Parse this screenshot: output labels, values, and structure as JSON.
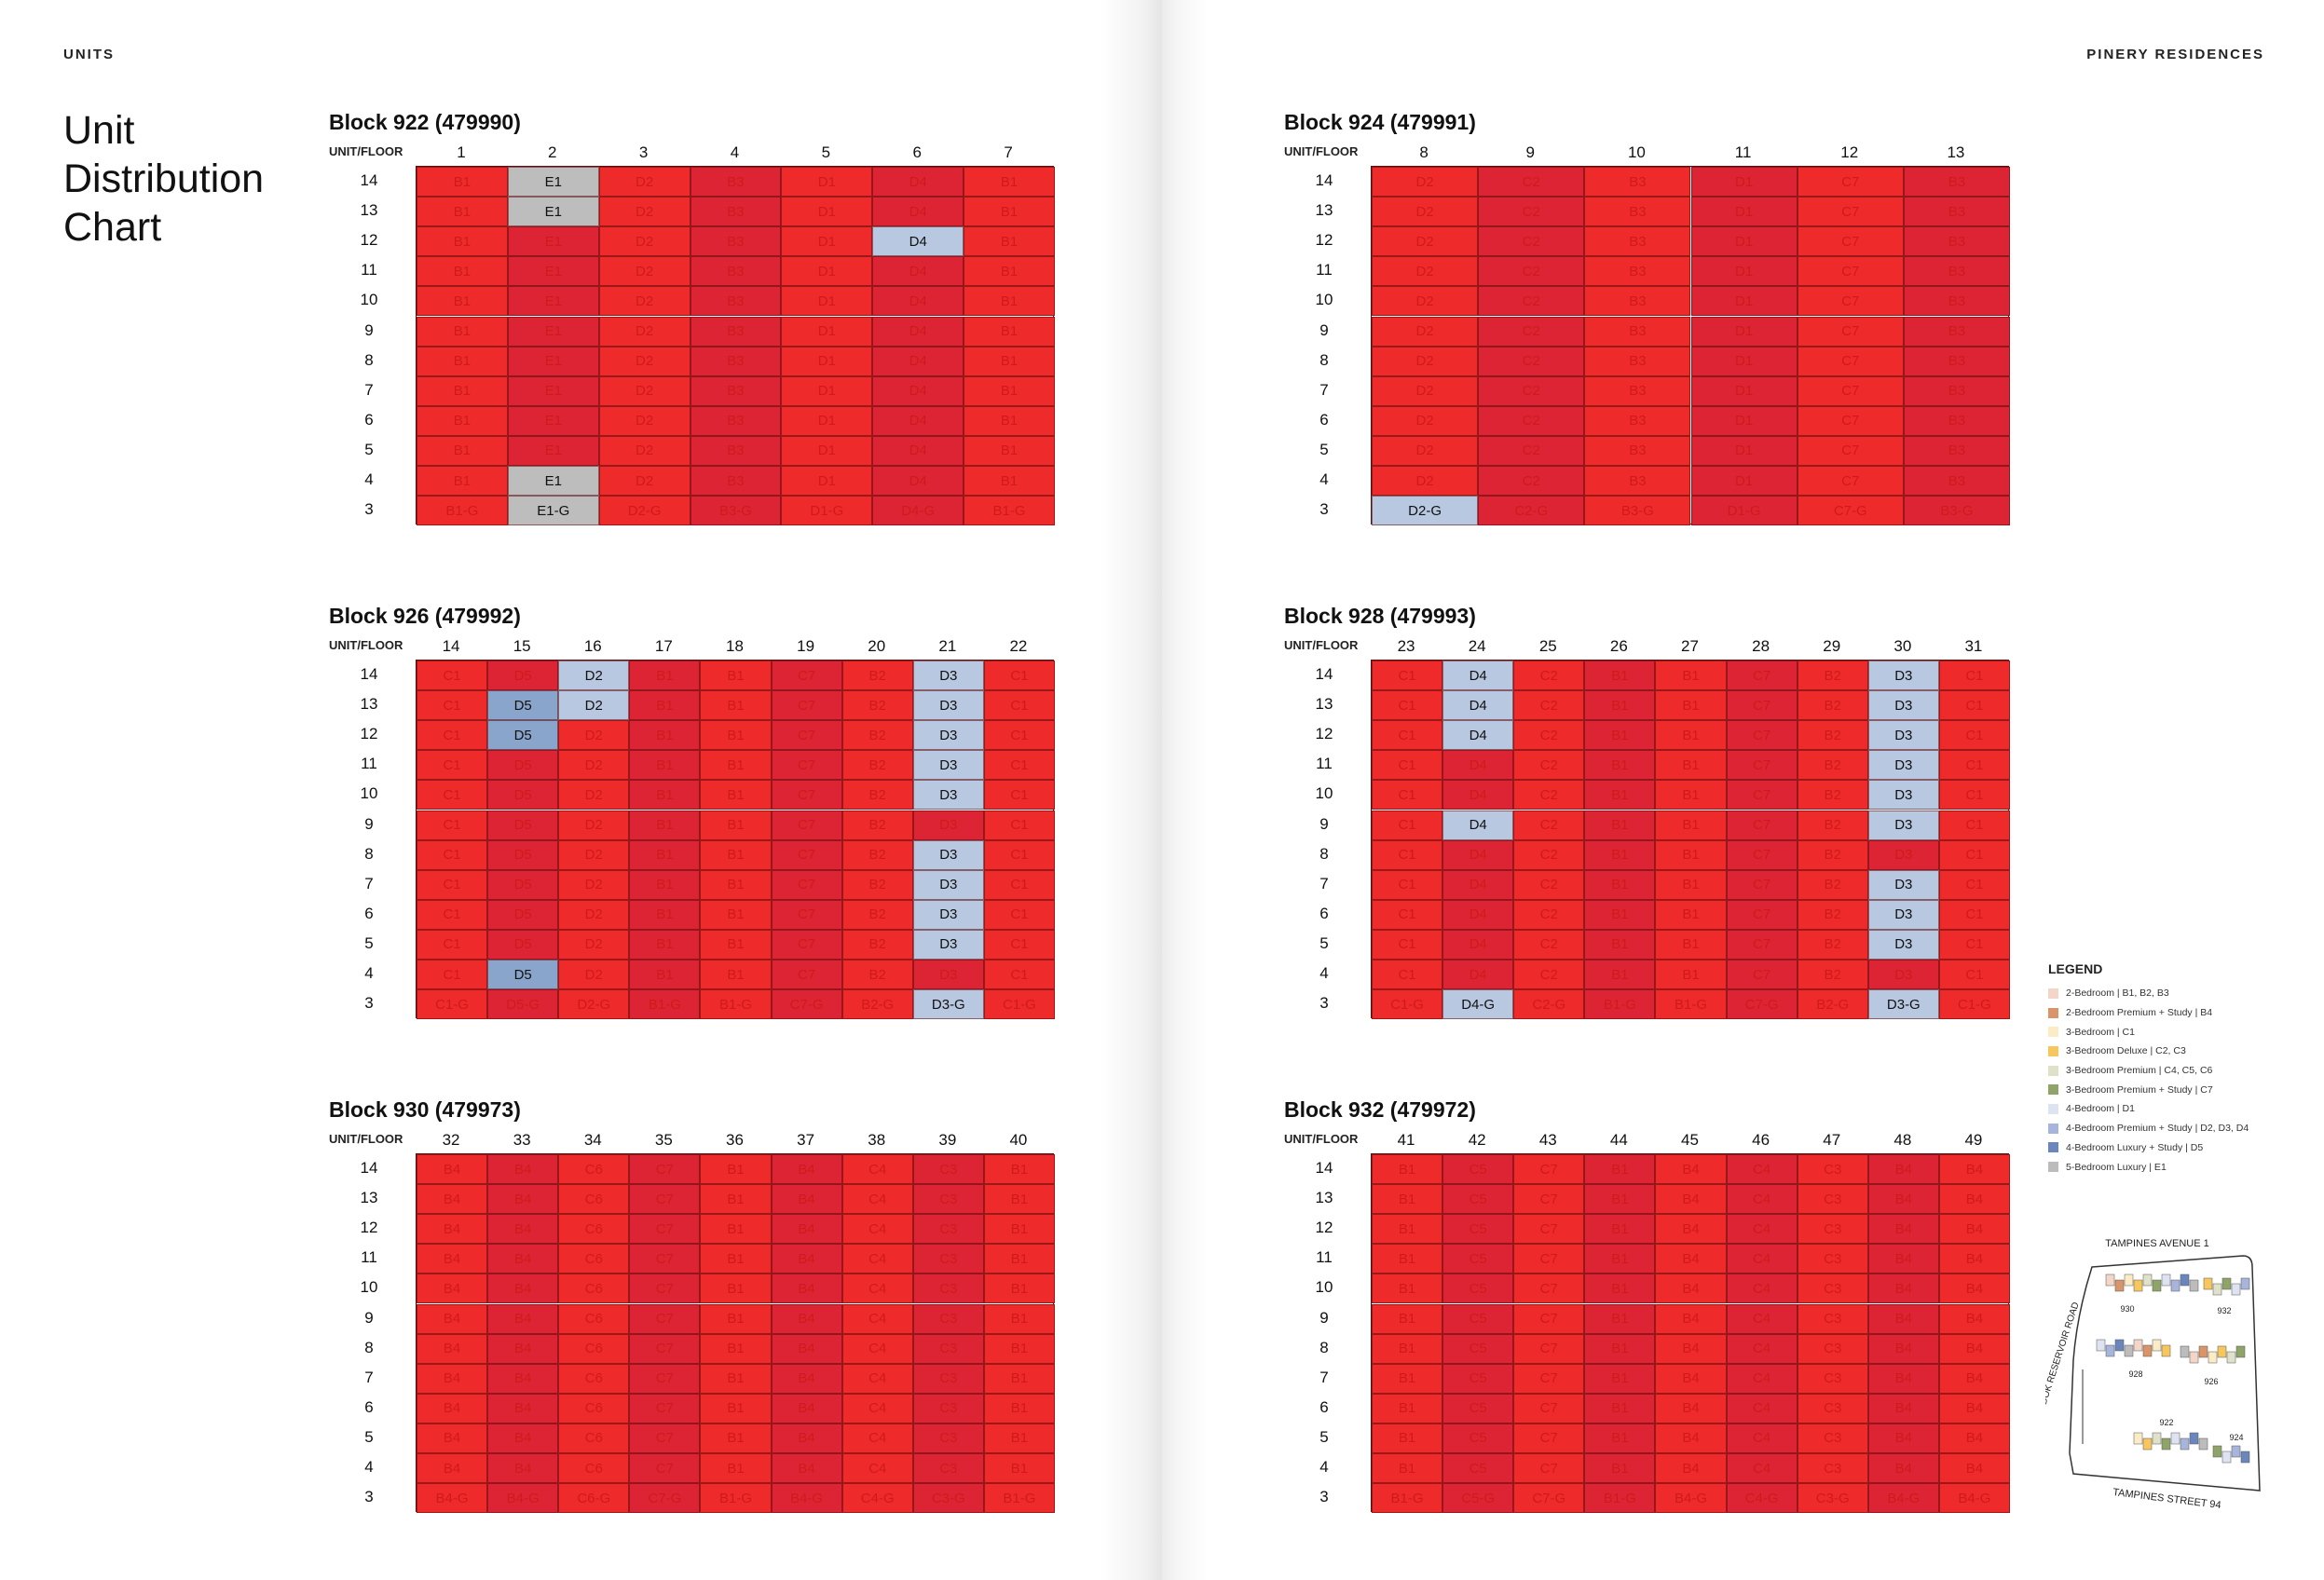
{
  "header": {
    "left": "UNITS",
    "right": "PINERY RESIDENCES"
  },
  "title_lines": [
    "Unit",
    "Distribution",
    "Chart"
  ],
  "unit_floor_label": "UNIT/FLOOR",
  "colors": {
    "default_cell": "#ee2a2a",
    "alt_cell": "#dc2434",
    "highlight_light": "#b8c8e0",
    "highlight_mid": "#8aa5cc",
    "highlight_grey": "#bdbdbd",
    "text_on_red": "#d01a1a",
    "text_on_highlight": "#111111"
  },
  "floors": [
    14,
    13,
    12,
    11,
    10,
    9,
    8,
    7,
    6,
    5,
    4,
    3
  ],
  "blocks": [
    {
      "title": "Block 922 (479990)",
      "units": [
        1,
        2,
        3,
        4,
        5,
        6,
        7
      ],
      "rows": [
        [
          "B1",
          "E1",
          "D2",
          "B3",
          "D1",
          "D4",
          "B1"
        ],
        [
          "B1",
          "E1",
          "D2",
          "B3",
          "D1",
          "D4",
          "B1"
        ],
        [
          "B1",
          "E1",
          "D2",
          "B3",
          "D1",
          "D4",
          "B1"
        ],
        [
          "B1",
          "E1",
          "D2",
          "B3",
          "D1",
          "D4",
          "B1"
        ],
        [
          "B1",
          "E1",
          "D2",
          "B3",
          "D1",
          "D4",
          "B1"
        ],
        [
          "B1",
          "E1",
          "D2",
          "B3",
          "D1",
          "D4",
          "B1"
        ],
        [
          "B1",
          "E1",
          "D2",
          "B3",
          "D1",
          "D4",
          "B1"
        ],
        [
          "B1",
          "E1",
          "D2",
          "B3",
          "D1",
          "D4",
          "B1"
        ],
        [
          "B1",
          "E1",
          "D2",
          "B3",
          "D1",
          "D4",
          "B1"
        ],
        [
          "B1",
          "E1",
          "D2",
          "B3",
          "D1",
          "D4",
          "B1"
        ],
        [
          "B1",
          "E1",
          "D2",
          "B3",
          "D1",
          "D4",
          "B1"
        ],
        [
          "B1-G",
          "E1-G",
          "D2-G",
          "B3-G",
          "D1-G",
          "D4-G",
          "B1-G"
        ]
      ],
      "highlights": [
        [
          0,
          1,
          "grey"
        ],
        [
          1,
          1,
          "grey"
        ],
        [
          2,
          5,
          "light"
        ],
        [
          10,
          1,
          "grey"
        ],
        [
          11,
          1,
          "grey"
        ]
      ]
    },
    {
      "title": "Block 924 (479991)",
      "units": [
        8,
        9,
        10,
        11,
        12,
        13
      ],
      "rows": [
        [
          "D2",
          "C2",
          "B3",
          "D1",
          "C7",
          "B3"
        ],
        [
          "D2",
          "C2",
          "B3",
          "D1",
          "C7",
          "B3"
        ],
        [
          "D2",
          "C2",
          "B3",
          "D1",
          "C7",
          "B3"
        ],
        [
          "D2",
          "C2",
          "B3",
          "D1",
          "C7",
          "B3"
        ],
        [
          "D2",
          "C2",
          "B3",
          "D1",
          "C7",
          "B3"
        ],
        [
          "D2",
          "C2",
          "B3",
          "D1",
          "C7",
          "B3"
        ],
        [
          "D2",
          "C2",
          "B3",
          "D1",
          "C7",
          "B3"
        ],
        [
          "D2",
          "C2",
          "B3",
          "D1",
          "C7",
          "B3"
        ],
        [
          "D2",
          "C2",
          "B3",
          "D1",
          "C7",
          "B3"
        ],
        [
          "D2",
          "C2",
          "B3",
          "D1",
          "C7",
          "B3"
        ],
        [
          "D2",
          "C2",
          "B3",
          "D1",
          "C7",
          "B3"
        ],
        [
          "D2-G",
          "C2-G",
          "B3-G",
          "D1-G",
          "C7-G",
          "B3-G"
        ]
      ],
      "highlights": [
        [
          11,
          0,
          "light"
        ]
      ]
    },
    {
      "title": "Block 926 (479992)",
      "units": [
        14,
        15,
        16,
        17,
        18,
        19,
        20,
        21,
        22
      ],
      "rows": [
        [
          "C1",
          "D5",
          "D2",
          "B1",
          "B1",
          "C7",
          "B2",
          "D3",
          "C1"
        ],
        [
          "C1",
          "D5",
          "D2",
          "B1",
          "B1",
          "C7",
          "B2",
          "D3",
          "C1"
        ],
        [
          "C1",
          "D5",
          "D2",
          "B1",
          "B1",
          "C7",
          "B2",
          "D3",
          "C1"
        ],
        [
          "C1",
          "D5",
          "D2",
          "B1",
          "B1",
          "C7",
          "B2",
          "D3",
          "C1"
        ],
        [
          "C1",
          "D5",
          "D2",
          "B1",
          "B1",
          "C7",
          "B2",
          "D3",
          "C1"
        ],
        [
          "C1",
          "D5",
          "D2",
          "B1",
          "B1",
          "C7",
          "B2",
          "D3",
          "C1"
        ],
        [
          "C1",
          "D5",
          "D2",
          "B1",
          "B1",
          "C7",
          "B2",
          "D3",
          "C1"
        ],
        [
          "C1",
          "D5",
          "D2",
          "B1",
          "B1",
          "C7",
          "B2",
          "D3",
          "C1"
        ],
        [
          "C1",
          "D5",
          "D2",
          "B1",
          "B1",
          "C7",
          "B2",
          "D3",
          "C1"
        ],
        [
          "C1",
          "D5",
          "D2",
          "B1",
          "B1",
          "C7",
          "B2",
          "D3",
          "C1"
        ],
        [
          "C1",
          "D5",
          "D2",
          "B1",
          "B1",
          "C7",
          "B2",
          "D3",
          "C1"
        ],
        [
          "C1-G",
          "D5-G",
          "D2-G",
          "B1-G",
          "B1-G",
          "C7-G",
          "B2-G",
          "D3-G",
          "C1-G"
        ]
      ],
      "highlights": [
        [
          0,
          2,
          "light"
        ],
        [
          0,
          7,
          "light"
        ],
        [
          1,
          1,
          "mid"
        ],
        [
          1,
          2,
          "light"
        ],
        [
          1,
          7,
          "light"
        ],
        [
          2,
          1,
          "mid"
        ],
        [
          2,
          7,
          "light"
        ],
        [
          3,
          7,
          "light"
        ],
        [
          4,
          7,
          "light"
        ],
        [
          6,
          7,
          "light"
        ],
        [
          7,
          7,
          "light"
        ],
        [
          8,
          7,
          "light"
        ],
        [
          9,
          7,
          "light"
        ],
        [
          10,
          1,
          "mid"
        ],
        [
          11,
          7,
          "light"
        ]
      ]
    },
    {
      "title": "Block 928 (479993)",
      "units": [
        23,
        24,
        25,
        26,
        27,
        28,
        29,
        30,
        31
      ],
      "rows": [
        [
          "C1",
          "D4",
          "C2",
          "B1",
          "B1",
          "C7",
          "B2",
          "D3",
          "C1"
        ],
        [
          "C1",
          "D4",
          "C2",
          "B1",
          "B1",
          "C7",
          "B2",
          "D3",
          "C1"
        ],
        [
          "C1",
          "D4",
          "C2",
          "B1",
          "B1",
          "C7",
          "B2",
          "D3",
          "C1"
        ],
        [
          "C1",
          "D4",
          "C2",
          "B1",
          "B1",
          "C7",
          "B2",
          "D3",
          "C1"
        ],
        [
          "C1",
          "D4",
          "C2",
          "B1",
          "B1",
          "C7",
          "B2",
          "D3",
          "C1"
        ],
        [
          "C1",
          "D4",
          "C2",
          "B1",
          "B1",
          "C7",
          "B2",
          "D3",
          "C1"
        ],
        [
          "C1",
          "D4",
          "C2",
          "B1",
          "B1",
          "C7",
          "B2",
          "D3",
          "C1"
        ],
        [
          "C1",
          "D4",
          "C2",
          "B1",
          "B1",
          "C7",
          "B2",
          "D3",
          "C1"
        ],
        [
          "C1",
          "D4",
          "C2",
          "B1",
          "B1",
          "C7",
          "B2",
          "D3",
          "C1"
        ],
        [
          "C1",
          "D4",
          "C2",
          "B1",
          "B1",
          "C7",
          "B2",
          "D3",
          "C1"
        ],
        [
          "C1",
          "D4",
          "C2",
          "B1",
          "B1",
          "C7",
          "B2",
          "D3",
          "C1"
        ],
        [
          "C1-G",
          "D4-G",
          "C2-G",
          "B1-G",
          "B1-G",
          "C7-G",
          "B2-G",
          "D3-G",
          "C1-G"
        ]
      ],
      "highlights": [
        [
          0,
          1,
          "light"
        ],
        [
          0,
          7,
          "light"
        ],
        [
          1,
          1,
          "light"
        ],
        [
          1,
          7,
          "light"
        ],
        [
          2,
          1,
          "light"
        ],
        [
          2,
          7,
          "light"
        ],
        [
          3,
          7,
          "light"
        ],
        [
          4,
          7,
          "light"
        ],
        [
          5,
          1,
          "light"
        ],
        [
          5,
          7,
          "light"
        ],
        [
          7,
          7,
          "light"
        ],
        [
          8,
          7,
          "light"
        ],
        [
          9,
          7,
          "light"
        ],
        [
          11,
          1,
          "light"
        ],
        [
          11,
          7,
          "light"
        ]
      ]
    },
    {
      "title": "Block 930 (479973)",
      "units": [
        32,
        33,
        34,
        35,
        36,
        37,
        38,
        39,
        40
      ],
      "rows": [
        [
          "B4",
          "B4",
          "C6",
          "C7",
          "B1",
          "B4",
          "C4",
          "C3",
          "B1"
        ],
        [
          "B4",
          "B4",
          "C6",
          "C7",
          "B1",
          "B4",
          "C4",
          "C3",
          "B1"
        ],
        [
          "B4",
          "B4",
          "C6",
          "C7",
          "B1",
          "B4",
          "C4",
          "C3",
          "B1"
        ],
        [
          "B4",
          "B4",
          "C6",
          "C7",
          "B1",
          "B4",
          "C4",
          "C3",
          "B1"
        ],
        [
          "B4",
          "B4",
          "C6",
          "C7",
          "B1",
          "B4",
          "C4",
          "C3",
          "B1"
        ],
        [
          "B4",
          "B4",
          "C6",
          "C7",
          "B1",
          "B4",
          "C4",
          "C3",
          "B1"
        ],
        [
          "B4",
          "B4",
          "C6",
          "C7",
          "B1",
          "B4",
          "C4",
          "C3",
          "B1"
        ],
        [
          "B4",
          "B4",
          "C6",
          "C7",
          "B1",
          "B4",
          "C4",
          "C3",
          "B1"
        ],
        [
          "B4",
          "B4",
          "C6",
          "C7",
          "B1",
          "B4",
          "C4",
          "C3",
          "B1"
        ],
        [
          "B4",
          "B4",
          "C6",
          "C7",
          "B1",
          "B4",
          "C4",
          "C3",
          "B1"
        ],
        [
          "B4",
          "B4",
          "C6",
          "C7",
          "B1",
          "B4",
          "C4",
          "C3",
          "B1"
        ],
        [
          "B4-G",
          "B4-G",
          "C6-G",
          "C7-G",
          "B1-G",
          "B4-G",
          "C4-G",
          "C3-G",
          "B1-G"
        ]
      ],
      "highlights": []
    },
    {
      "title": "Block 932 (479972)",
      "units": [
        41,
        42,
        43,
        44,
        45,
        46,
        47,
        48,
        49
      ],
      "rows": [
        [
          "B1",
          "C5",
          "C7",
          "B1",
          "B4",
          "C4",
          "C3",
          "B4",
          "B4"
        ],
        [
          "B1",
          "C5",
          "C7",
          "B1",
          "B4",
          "C4",
          "C3",
          "B4",
          "B4"
        ],
        [
          "B1",
          "C5",
          "C7",
          "B1",
          "B4",
          "C4",
          "C3",
          "B4",
          "B4"
        ],
        [
          "B1",
          "C5",
          "C7",
          "B1",
          "B4",
          "C4",
          "C3",
          "B4",
          "B4"
        ],
        [
          "B1",
          "C5",
          "C7",
          "B1",
          "B4",
          "C4",
          "C3",
          "B4",
          "B4"
        ],
        [
          "B1",
          "C5",
          "C7",
          "B1",
          "B4",
          "C4",
          "C3",
          "B4",
          "B4"
        ],
        [
          "B1",
          "C5",
          "C7",
          "B1",
          "B4",
          "C4",
          "C3",
          "B4",
          "B4"
        ],
        [
          "B1",
          "C5",
          "C7",
          "B1",
          "B4",
          "C4",
          "C3",
          "B4",
          "B4"
        ],
        [
          "B1",
          "C5",
          "C7",
          "B1",
          "B4",
          "C4",
          "C3",
          "B4",
          "B4"
        ],
        [
          "B1",
          "C5",
          "C7",
          "B1",
          "B4",
          "C4",
          "C3",
          "B4",
          "B4"
        ],
        [
          "B1",
          "C5",
          "C7",
          "B1",
          "B4",
          "C4",
          "C3",
          "B4",
          "B4"
        ],
        [
          "B1-G",
          "C5-G",
          "C7-G",
          "B1-G",
          "B4-G",
          "C4-G",
          "C3-G",
          "B4-G",
          "B4-G"
        ]
      ],
      "highlights": []
    }
  ],
  "legend": {
    "title": "LEGEND",
    "items": [
      {
        "label": "2-Bedroom | B1, B2, B3",
        "color": "#f3d6c7"
      },
      {
        "label": "2-Bedroom Premium + Study | B4",
        "color": "#d9946a"
      },
      {
        "label": "3-Bedroom | C1",
        "color": "#fbecc6"
      },
      {
        "label": "3-Bedroom Deluxe | C2, C3",
        "color": "#f7c75e"
      },
      {
        "label": "3-Bedroom Premium | C4, C5, C6",
        "color": "#dfe2c9"
      },
      {
        "label": "3-Bedroom Premium + Study | C7",
        "color": "#8fa468"
      },
      {
        "label": "4-Bedroom | D1",
        "color": "#dde3f1"
      },
      {
        "label": "4-Bedroom Premium + Study | D2, D3, D4",
        "color": "#a7b5dc"
      },
      {
        "label": "4-Bedroom Luxury + Study | D5",
        "color": "#6b86bd"
      },
      {
        "label": "5-Bedroom Luxury | E1",
        "color": "#bcbcbc"
      }
    ]
  },
  "site_map": {
    "top_road": "TAMPINES AVENUE 1",
    "left_road": "BEDOK RESERVOIR ROAD",
    "bottom_road": "TAMPINES STREET 94",
    "block_labels": [
      "930",
      "932",
      "928",
      "926",
      "922",
      "924"
    ]
  }
}
